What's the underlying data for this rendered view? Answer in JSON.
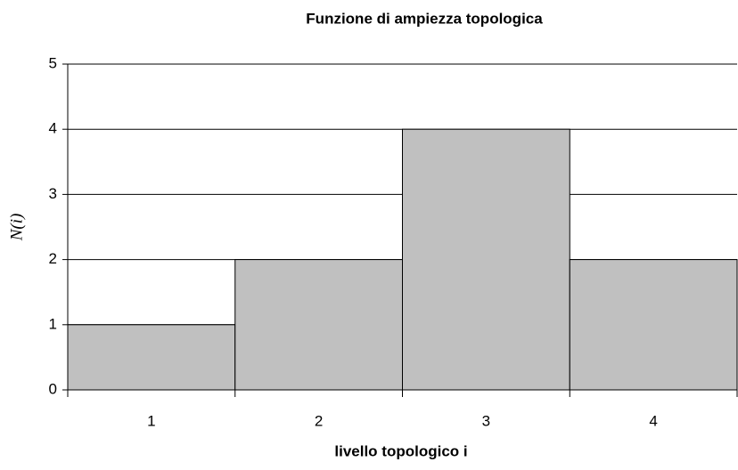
{
  "chart_data": {
    "type": "bar",
    "title": "Funzione di ampiezza topologica",
    "x_label": "livello topologico i",
    "y_label": "N(i)",
    "categories": [
      "1",
      "2",
      "3",
      "4"
    ],
    "values": [
      1,
      2,
      4,
      2
    ],
    "color": "#c0c0c0",
    "ylim": [
      0,
      5
    ],
    "yticks": [
      0,
      1,
      2,
      3,
      4,
      5
    ],
    "grid": true
  }
}
